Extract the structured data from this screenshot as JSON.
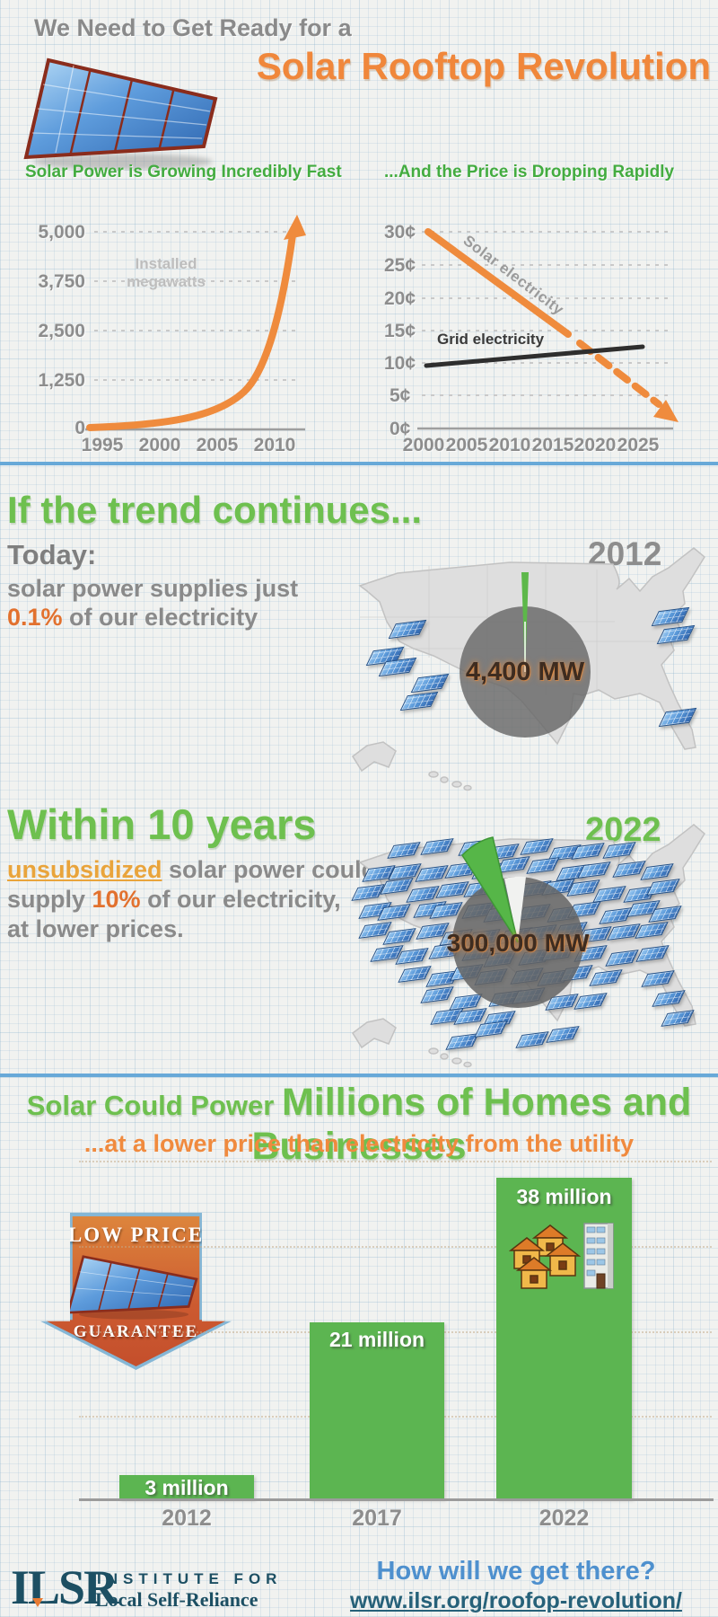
{
  "header": {
    "kicker": "We Need to Get Ready for a",
    "title": "Solar Rooftop Revolution"
  },
  "chart_data": [
    {
      "type": "line",
      "title": "Solar Power is Growing Incredibly Fast",
      "ylabel": "Installed\nmegawatts",
      "ytick_labels": [
        "5,000",
        "3,750",
        "2,500",
        "1,250",
        "0"
      ],
      "xtick_labels": [
        "1995",
        "2000",
        "2005",
        "2010"
      ],
      "ylim": [
        0,
        5000
      ],
      "grid": "dashed horizontal",
      "series": [
        {
          "name": "Installed megawatts",
          "x": [
            1995,
            2000,
            2005,
            2008,
            2010,
            2011,
            2012
          ],
          "values": [
            20,
            80,
            300,
            800,
            2000,
            3200,
            5000
          ],
          "color": "#ef8b3d",
          "arrow_beyond_top": true
        }
      ]
    },
    {
      "type": "line",
      "title": "...And the Price is Dropping Rapidly",
      "ytick_labels": [
        "30¢",
        "25¢",
        "20¢",
        "15¢",
        "10¢",
        "5¢",
        "0¢"
      ],
      "xtick_labels": [
        "2000",
        "2005",
        "2010",
        "2015",
        "2020",
        "2025"
      ],
      "ylim": [
        0,
        30
      ],
      "grid": "dashed horizontal",
      "series": [
        {
          "name": "Solar electricity",
          "x": [
            2000,
            2016
          ],
          "values": [
            30,
            14
          ],
          "projection_x": [
            2016,
            2027
          ],
          "projection_values": [
            14,
            2
          ],
          "color": "#ef8b3d",
          "style": "solid, then dashed projection ending in arrow"
        },
        {
          "name": "Grid electricity",
          "x": [
            2000,
            2025
          ],
          "values": [
            10,
            12.5
          ],
          "color": "#2e2e2e",
          "style": "solid"
        }
      ]
    },
    {
      "type": "bar",
      "title": "Solar Could Power Millions of Homes and Businesses",
      "categories": [
        "2012",
        "2017",
        "2022"
      ],
      "values": [
        3,
        21,
        38
      ],
      "unit": "million homes and businesses",
      "bar_labels": [
        "3 million",
        "21 million",
        "38 million"
      ],
      "color": "#5cb551",
      "ylim": [
        0,
        40
      ],
      "gridlines": [
        10,
        20,
        30,
        40
      ]
    }
  ],
  "sections": {
    "trend": {
      "title": "If the trend continues...",
      "today": "Today:",
      "line1": "solar power supplies just",
      "stat": "0.1%",
      "line2": " of our electricity",
      "year": "2012",
      "pie_value": "4,400 MW"
    },
    "ten_years": {
      "title": "Within 10 years",
      "highlight": "unsubsidized",
      "line1_rest": " solar power could",
      "line2_pre": "supply ",
      "stat": "10%",
      "line2_post": " of our electricity,",
      "line3": "at lower prices.",
      "year": "2022",
      "pie_value": "300,000 MW"
    },
    "homes": {
      "title_small": "Solar Could Power ",
      "title_big": "Millions of Homes and Businesses",
      "subtitle": "...at a lower price than electricity from the utility",
      "badge_top": "LOW PRICE",
      "badge_bottom": "GUARANTEE"
    }
  },
  "footer": {
    "logo_acronym": "ILSR",
    "org_line1": "INSTITUTE FOR",
    "org_line2": "Local Self-Reliance",
    "question": "How will we get there?",
    "url": "www.ilsr.org/roofop-revolution/"
  },
  "icons": {
    "solar_panel": "solar-panel-icon",
    "badge": "low-price-guarantee-down-arrow-badge",
    "homes": "houses-and-building-icon"
  },
  "colors": {
    "orange": "#ef8b3d",
    "green_title": "#6ec04f",
    "green_chart_title": "#43ac40",
    "green_bar": "#5cb551",
    "gray_text": "#8a8a8a",
    "blue_divider": "#68a9d8",
    "teal": "#1c4f63",
    "link_blue": "#4e90ce"
  }
}
